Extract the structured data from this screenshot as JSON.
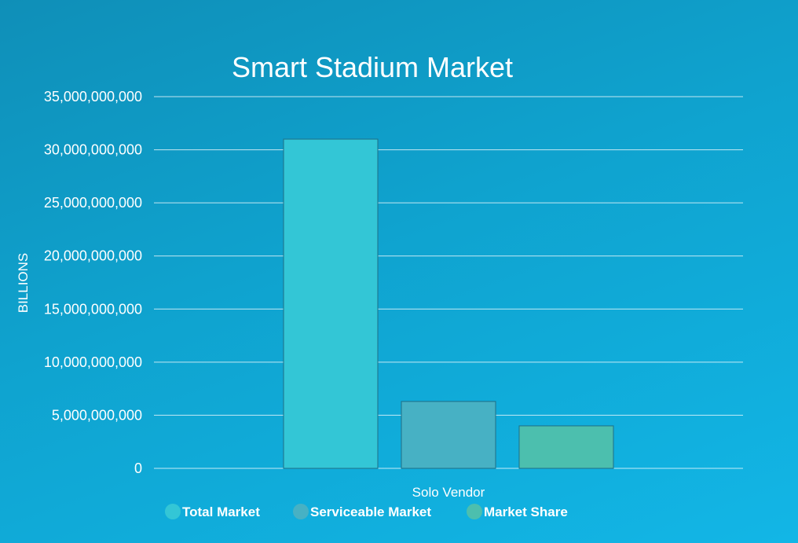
{
  "chart_data": {
    "type": "bar",
    "title": "Smart Stadium Market",
    "ylabel": "BILLIONS",
    "xlabel": "",
    "categories": [
      "Solo Vendor"
    ],
    "ylim": [
      0,
      35000000000
    ],
    "yticks": [
      0,
      5000000000,
      10000000000,
      15000000000,
      20000000000,
      25000000000,
      30000000000,
      35000000000
    ],
    "ytick_labels": [
      "0",
      "5,000,000,000",
      "10,000,000,000",
      "15,000,000,000",
      "20,000,000,000",
      "25,000,000,000",
      "30,000,000,000",
      "35,000,000,000"
    ],
    "grid": true,
    "legend_position": "bottom",
    "series": [
      {
        "name": "Total Market",
        "values": [
          31000000000
        ],
        "color": "#33c6d6"
      },
      {
        "name": "Serviceable Market",
        "values": [
          6300000000
        ],
        "color": "#47b1c4"
      },
      {
        "name": "Market Share",
        "values": [
          4000000000
        ],
        "color": "#4cbfae"
      }
    ]
  }
}
